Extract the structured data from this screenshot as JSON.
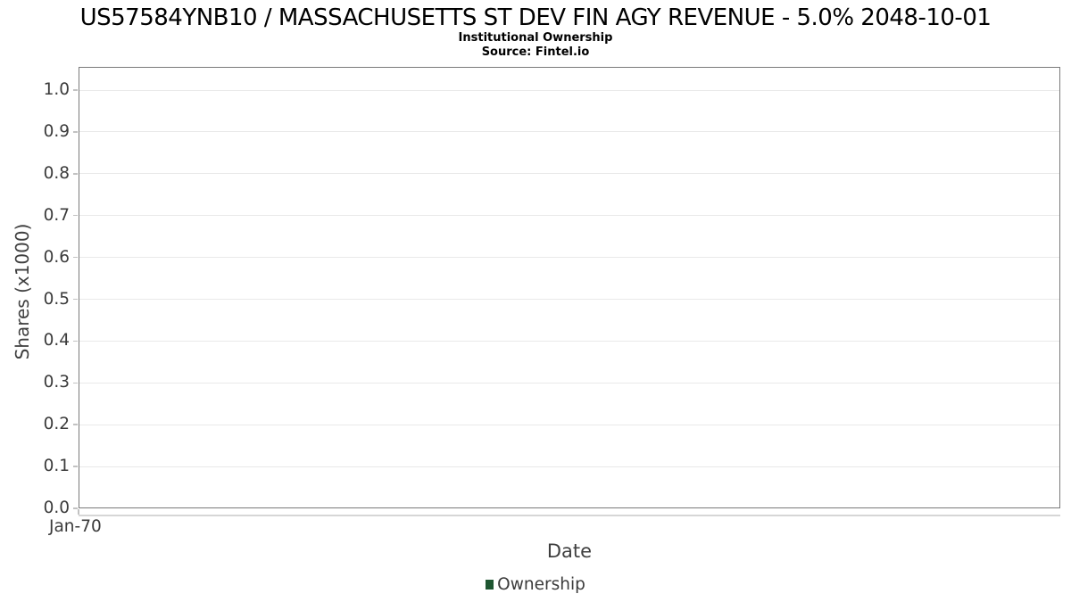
{
  "header": {
    "title": "US57584YNB10 / MASSACHUSETTS ST DEV FIN AGY REVENUE - 5.0% 2048-10-01",
    "subtitle": "Institutional Ownership",
    "source": "Source: Fintel.io"
  },
  "chart_data": {
    "type": "line",
    "title": "US57584YNB10 / MASSACHUSETTS ST DEV FIN AGY REVENUE - 5.0% 2048-10-01",
    "subtitle": "Institutional Ownership",
    "source": "Source: Fintel.io",
    "xlabel": "Date",
    "ylabel": "Shares (x1000)",
    "x": {
      "label": "Date",
      "tick_labels": [
        "Jan-70"
      ]
    },
    "y": {
      "label": "Shares (x1000)",
      "tick_values": [
        0.0,
        0.1,
        0.2,
        0.3,
        0.4,
        0.5,
        0.6,
        0.7,
        0.8,
        0.9,
        1.0
      ],
      "tick_labels": [
        "0.0",
        "0.1",
        "0.2",
        "0.3",
        "0.4",
        "0.5",
        "0.6",
        "0.7",
        "0.8",
        "0.9",
        "1.0"
      ],
      "range": [
        0,
        1.056
      ]
    },
    "series": [
      {
        "name": "Ownership",
        "color": "#1e5631",
        "x": [],
        "values": []
      }
    ],
    "grid": true,
    "legend_position": "bottom"
  },
  "colors": {
    "plot_border": "#7a7a7a",
    "gridline": "#e9e9e9",
    "tick": "#c2c2c2",
    "axis_line": "#d6d6d6",
    "text": "#3b3b3b",
    "title_text": "#000000",
    "legend_marker": "#1e5631",
    "background": "#ffffff"
  }
}
